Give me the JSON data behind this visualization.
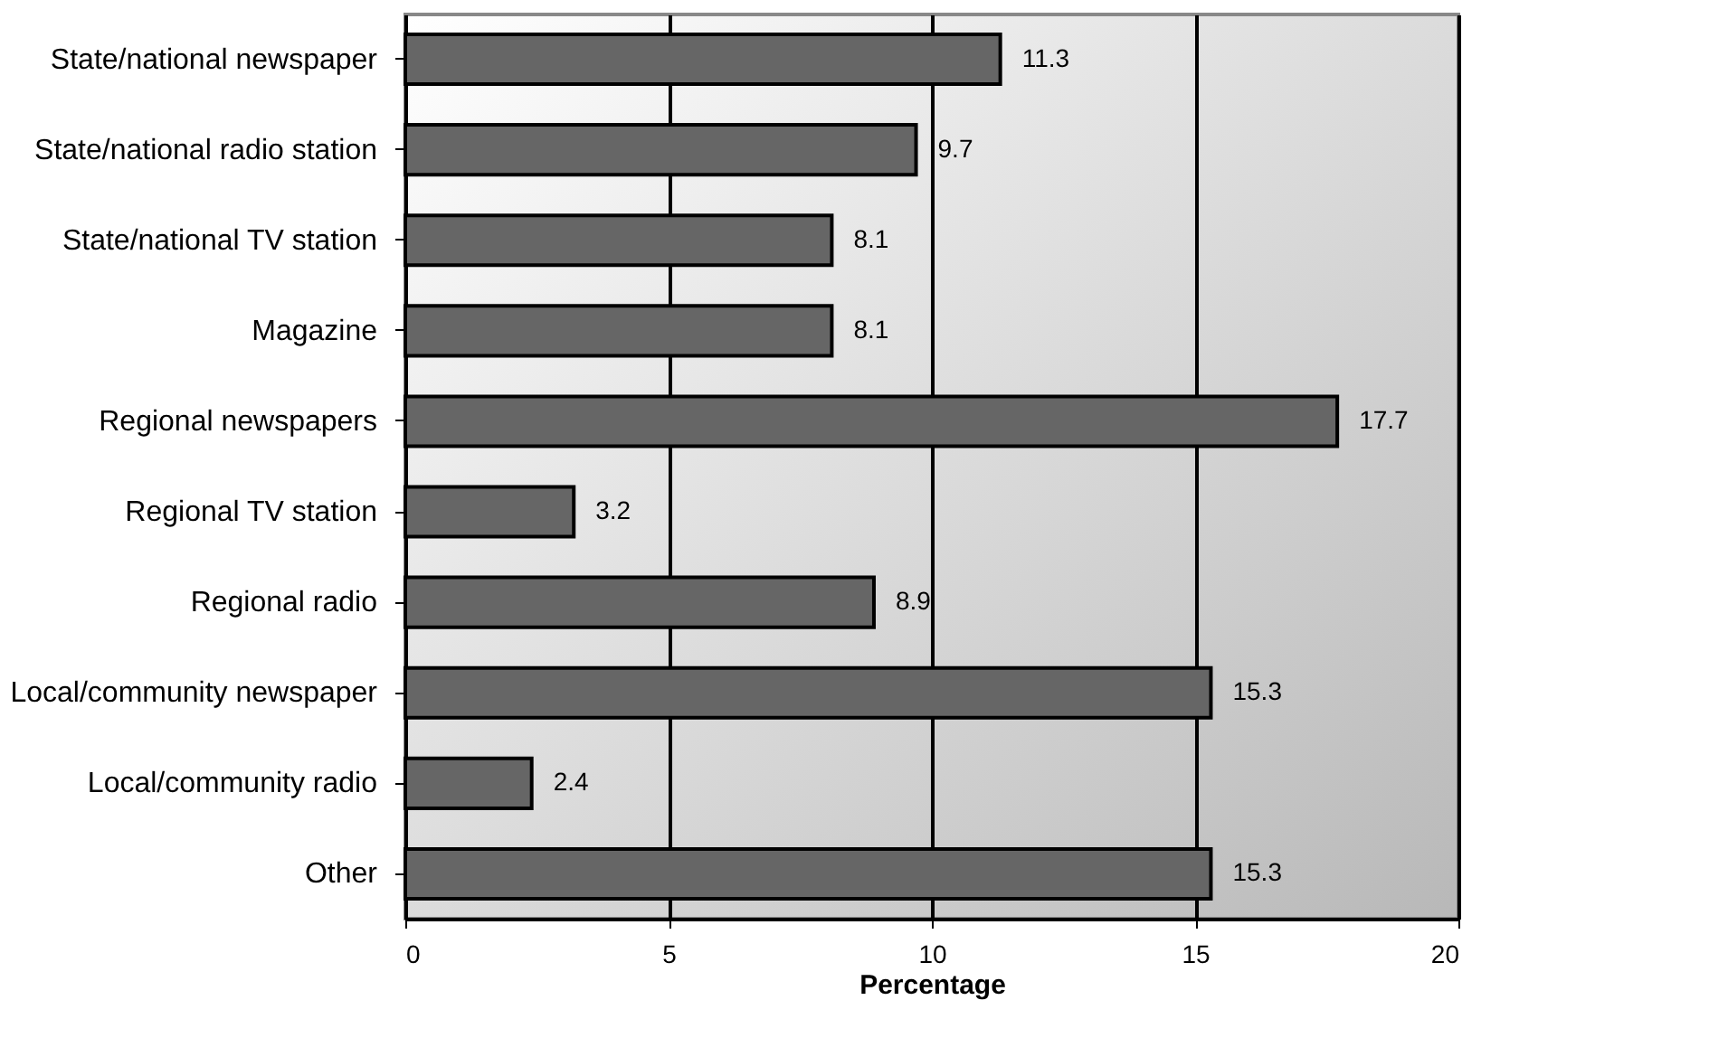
{
  "chart_data": {
    "type": "bar",
    "orientation": "horizontal",
    "xlabel": "Percentage",
    "categories": [
      "State/national newspaper",
      "State/national radio station",
      "State/national TV station",
      "Magazine",
      "Regional newspapers",
      "Regional TV station",
      "Regional radio",
      "Local/community newspaper",
      "Local/community radio",
      "Other"
    ],
    "values": [
      11.3,
      9.7,
      8.1,
      8.1,
      17.7,
      3.2,
      8.9,
      15.3,
      2.4,
      15.3
    ],
    "color": "#666666",
    "xlim": [
      0,
      20
    ],
    "xticks": [
      0,
      5,
      10,
      15,
      20
    ],
    "grid": "x",
    "data_labels": true
  }
}
